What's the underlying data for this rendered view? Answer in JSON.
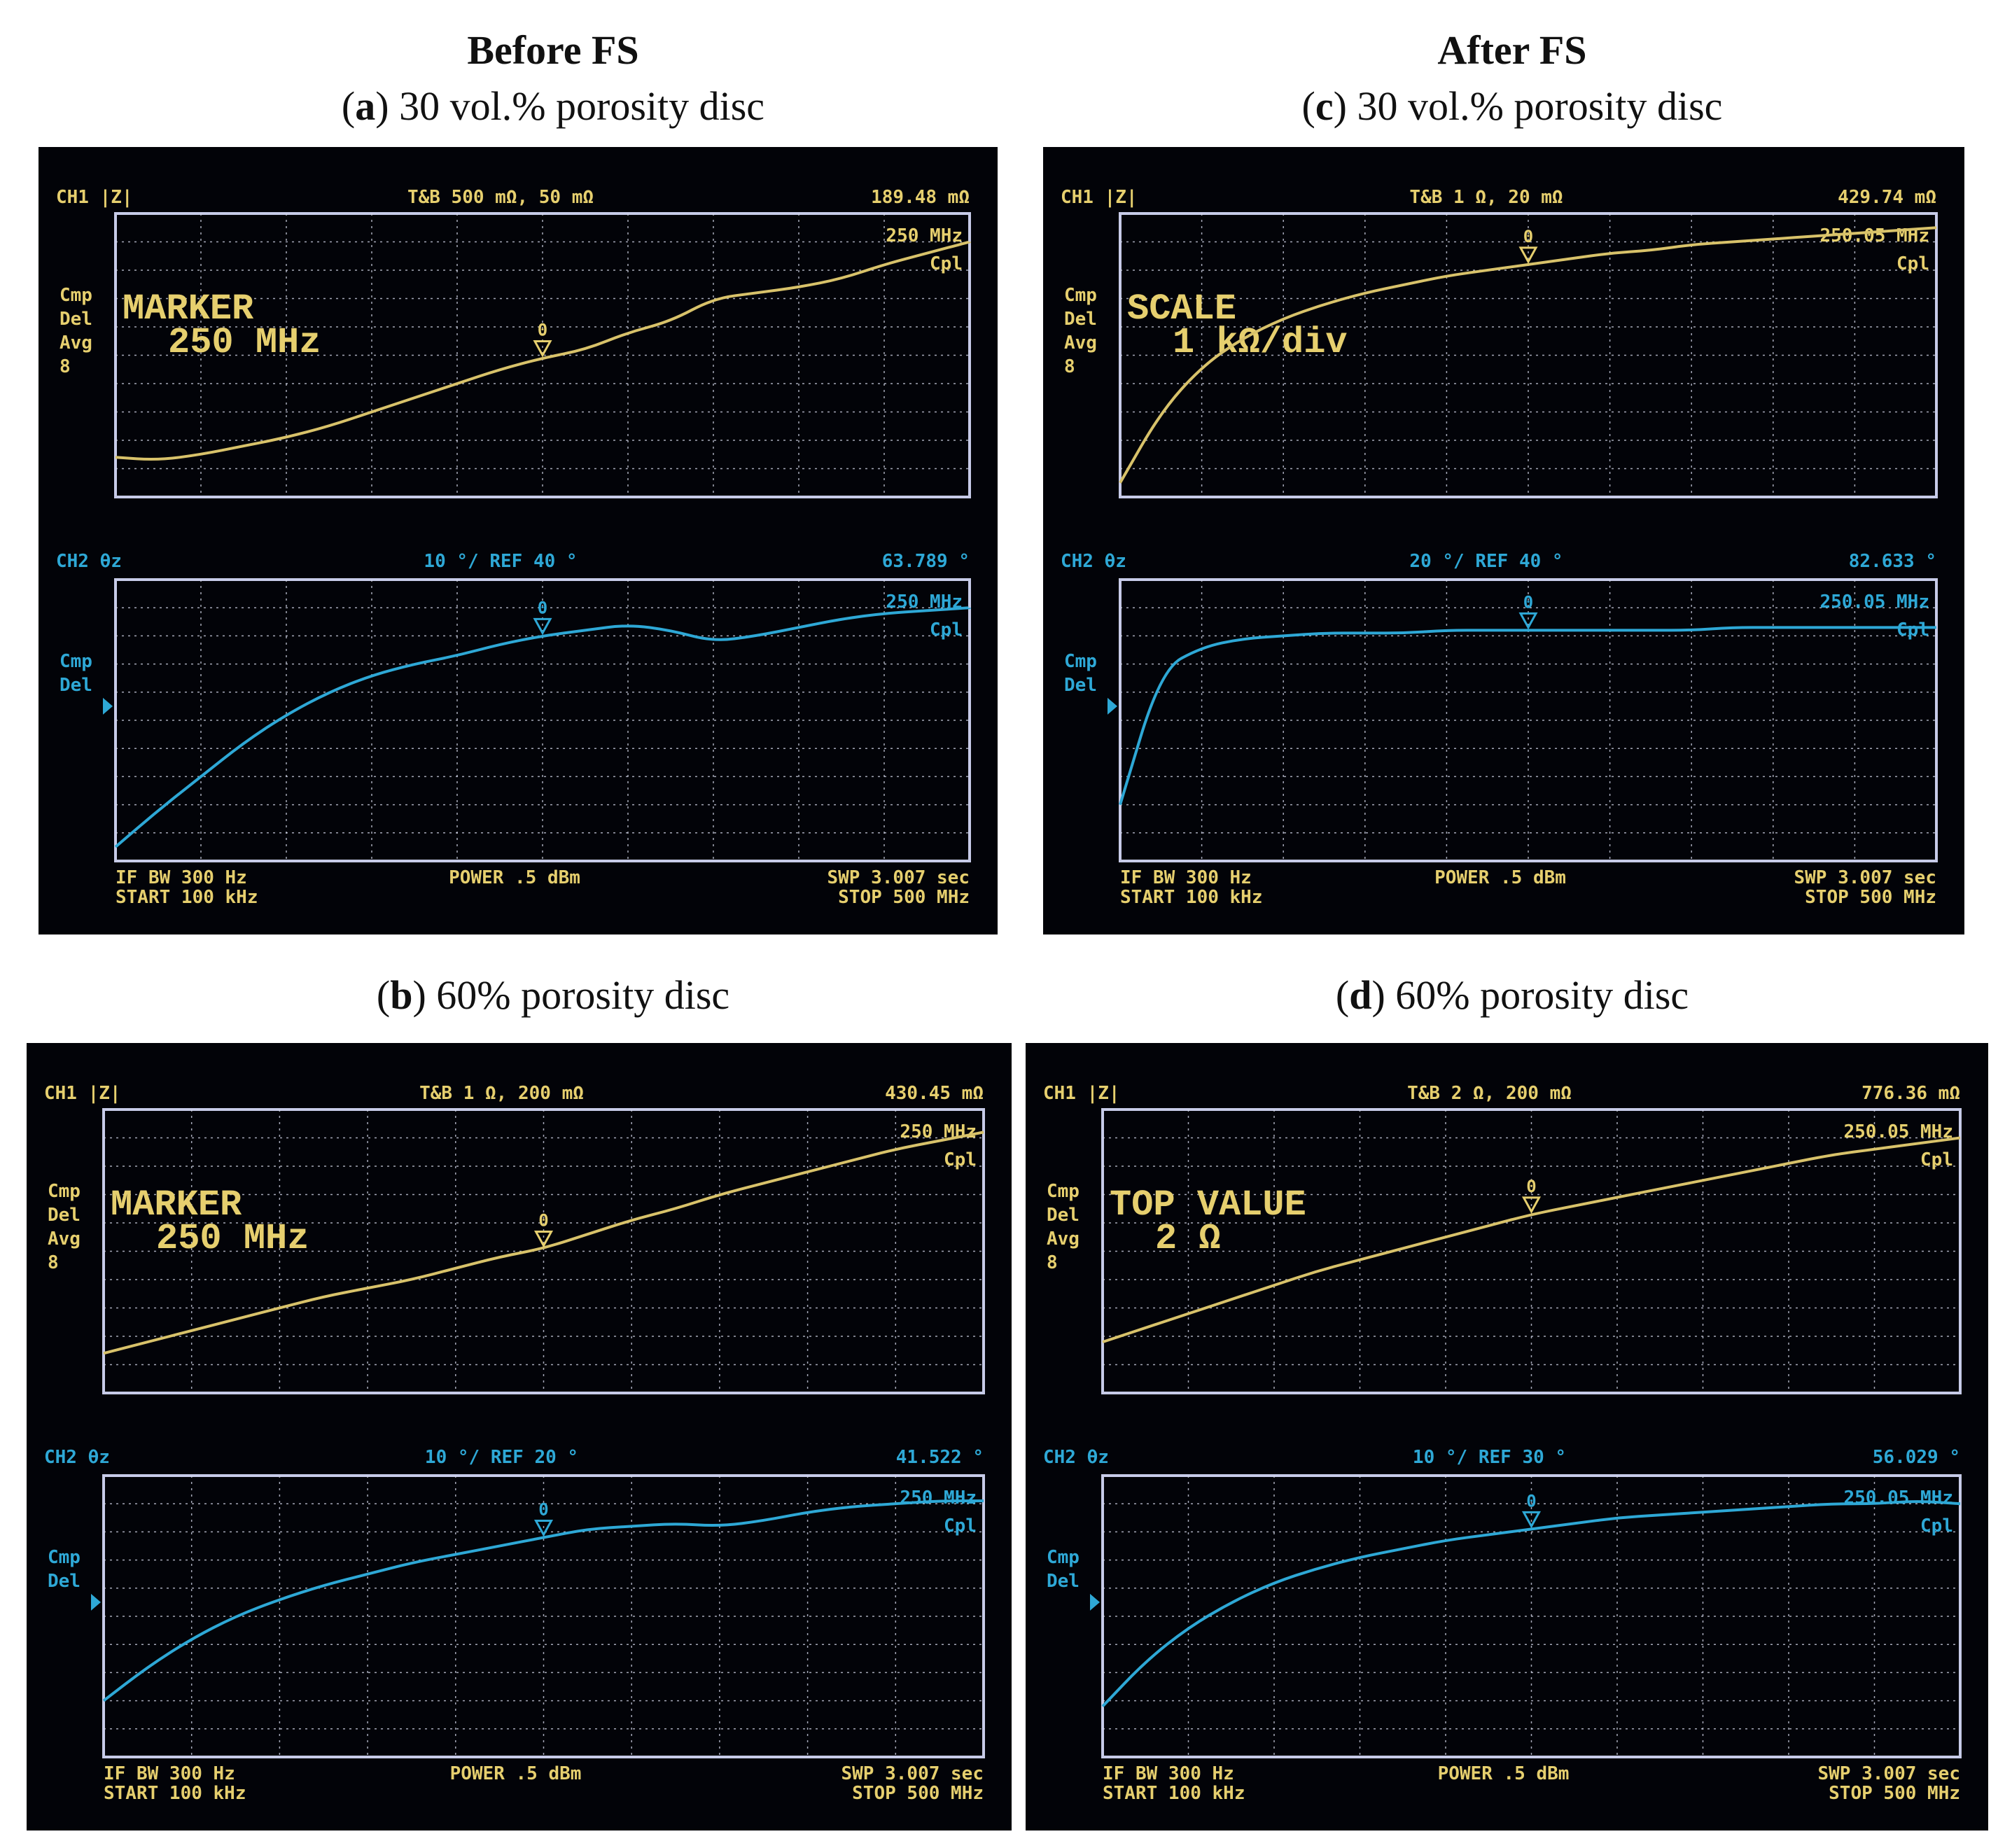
{
  "headers": {
    "before": "Before FS",
    "after": "After FS"
  },
  "captions": {
    "a": {
      "letter": "a",
      "text": " 30 vol.% porosity disc"
    },
    "b": {
      "letter": "b",
      "text": " 60% porosity disc"
    },
    "c": {
      "letter": "c",
      "text": " 30 vol.% porosity disc"
    },
    "d": {
      "letter": "d",
      "text": " 60% porosity disc"
    }
  },
  "colors": {
    "ch1_trace": "#d8c26a",
    "ch2_trace": "#2ea8d6",
    "ch1_text": "#e6cf6e",
    "ch2_text": "#2ea8d6",
    "grid": "#cfd3e6",
    "frame": "#c7cbe8",
    "screen_bg": "#020308"
  },
  "panels": [
    {
      "id": "a",
      "ch1": {
        "label": "CH1  |Z|",
        "scale": "T&B  500 mΩ, 50 mΩ",
        "value": "189.48 mΩ",
        "marker_freq": "250 MHz",
        "cpl": "Cpl",
        "side": [
          "Cmp",
          "Del",
          "Avg",
          "8"
        ],
        "overlay": [
          "MARKER",
          "250 MHz"
        ],
        "marker_num": "0",
        "trace": [
          0.14,
          0.13,
          0.15,
          0.18,
          0.21,
          0.25,
          0.3,
          0.35,
          0.4,
          0.45,
          0.49,
          0.52,
          0.58,
          0.62,
          0.7,
          0.72,
          0.74,
          0.77,
          0.82,
          0.86,
          0.9
        ]
      },
      "ch2": {
        "label": "CH2  θz",
        "scale": "10 °/ REF 40 °",
        "value": "63.789 °",
        "marker_freq": "250 MHz",
        "cpl": "Cpl",
        "side": [
          "Cmp",
          "Del"
        ],
        "marker_num": "0",
        "trace": [
          0.05,
          0.18,
          0.3,
          0.42,
          0.52,
          0.6,
          0.66,
          0.7,
          0.73,
          0.77,
          0.8,
          0.82,
          0.84,
          0.82,
          0.78,
          0.8,
          0.83,
          0.86,
          0.88,
          0.89,
          0.9
        ]
      },
      "footer": {
        "l1": "IF BW  300 Hz",
        "l2": "START  100 kHz",
        "c": "POWER  .5 dBm",
        "r1": "SWP  3.007 sec",
        "r2": "STOP  500 MHz"
      }
    },
    {
      "id": "b",
      "ch1": {
        "label": "CH1  |Z|",
        "scale": "T&B  1 Ω, 200 mΩ",
        "value": "430.45 mΩ",
        "marker_freq": "250 MHz",
        "cpl": "Cpl",
        "side": [
          "Cmp",
          "Del",
          "Avg",
          "8"
        ],
        "overlay": [
          "MARKER",
          "250 MHz"
        ],
        "marker_num": "0",
        "trace": [
          0.14,
          0.18,
          0.22,
          0.26,
          0.3,
          0.34,
          0.37,
          0.4,
          0.44,
          0.48,
          0.51,
          0.56,
          0.61,
          0.65,
          0.7,
          0.74,
          0.78,
          0.82,
          0.86,
          0.89,
          0.92
        ]
      },
      "ch2": {
        "label": "CH2  θz",
        "scale": "10 °/ REF 20 °",
        "value": "41.522 °",
        "marker_freq": "250 MHz",
        "cpl": "Cpl",
        "side": [
          "Cmp",
          "Del"
        ],
        "marker_num": "0",
        "trace": [
          0.2,
          0.32,
          0.42,
          0.5,
          0.56,
          0.61,
          0.65,
          0.69,
          0.72,
          0.75,
          0.78,
          0.81,
          0.82,
          0.83,
          0.82,
          0.84,
          0.87,
          0.89,
          0.9,
          0.91,
          0.91
        ]
      },
      "footer": {
        "l1": "IF BW  300 Hz",
        "l2": "START  100 kHz",
        "c": "POWER  .5 dBm",
        "r1": "SWP  3.007 sec",
        "r2": "STOP  500 MHz"
      }
    },
    {
      "id": "c",
      "ch1": {
        "label": "CH1  |Z|",
        "scale": "T&B   1 Ω, 20 mΩ",
        "value": "429.74 mΩ",
        "marker_freq": "250.05 MHz",
        "cpl": "Cpl",
        "side": [
          "Cmp",
          "Del",
          "Avg",
          "8"
        ],
        "overlay": [
          "SCALE",
          "1 kΩ/div"
        ],
        "marker_num": "0",
        "trace": [
          0.05,
          0.3,
          0.46,
          0.56,
          0.63,
          0.68,
          0.72,
          0.75,
          0.78,
          0.8,
          0.82,
          0.84,
          0.86,
          0.87,
          0.89,
          0.9,
          0.91,
          0.92,
          0.93,
          0.94,
          0.95
        ]
      },
      "ch2": {
        "label": "CH2  θz",
        "scale": "20 °/ REF 40 °",
        "value": "82.633 °",
        "marker_freq": "250.05 MHz",
        "cpl": "Cpl",
        "side": [
          "Cmp",
          "Del"
        ],
        "marker_num": "0",
        "trace": [
          0.2,
          0.68,
          0.76,
          0.79,
          0.8,
          0.81,
          0.81,
          0.81,
          0.82,
          0.82,
          0.82,
          0.82,
          0.82,
          0.82,
          0.82,
          0.83,
          0.83,
          0.83,
          0.83,
          0.83,
          0.83
        ]
      },
      "footer": {
        "l1": "IF BW  300 Hz",
        "l2": "START  100 kHz",
        "c": "POWER  .5 dBm",
        "r1": "SWP  3.007 sec",
        "r2": "STOP  500 MHz"
      }
    },
    {
      "id": "d",
      "ch1": {
        "label": "CH1  |Z|",
        "scale": "T&B  2 Ω, 200 mΩ",
        "value": "776.36 mΩ",
        "marker_freq": "250.05 MHz",
        "cpl": "Cpl",
        "side": [
          "Cmp",
          "Del",
          "Avg",
          "8"
        ],
        "overlay": [
          "TOP VALUE",
          "2 Ω"
        ],
        "marker_num": "0",
        "trace": [
          0.18,
          0.23,
          0.28,
          0.33,
          0.38,
          0.43,
          0.47,
          0.51,
          0.55,
          0.59,
          0.63,
          0.66,
          0.69,
          0.72,
          0.75,
          0.78,
          0.81,
          0.84,
          0.86,
          0.88,
          0.9
        ]
      },
      "ch2": {
        "label": "CH2  θz",
        "scale": "10 °/ REF 30 °",
        "value": "56.029 °",
        "marker_freq": "250.05 MHz",
        "cpl": "Cpl",
        "side": [
          "Cmp",
          "Del"
        ],
        "marker_num": "0",
        "trace": [
          0.18,
          0.34,
          0.46,
          0.55,
          0.62,
          0.67,
          0.71,
          0.74,
          0.77,
          0.79,
          0.81,
          0.83,
          0.85,
          0.86,
          0.87,
          0.88,
          0.89,
          0.9,
          0.9,
          0.91,
          0.9
        ]
      },
      "footer": {
        "l1": "IF BW  300 Hz",
        "l2": "START  100 kHz",
        "c": "POWER  .5 dBm",
        "r1": "SWP  3.007 sec",
        "r2": "STOP  500 MHz"
      }
    }
  ]
}
